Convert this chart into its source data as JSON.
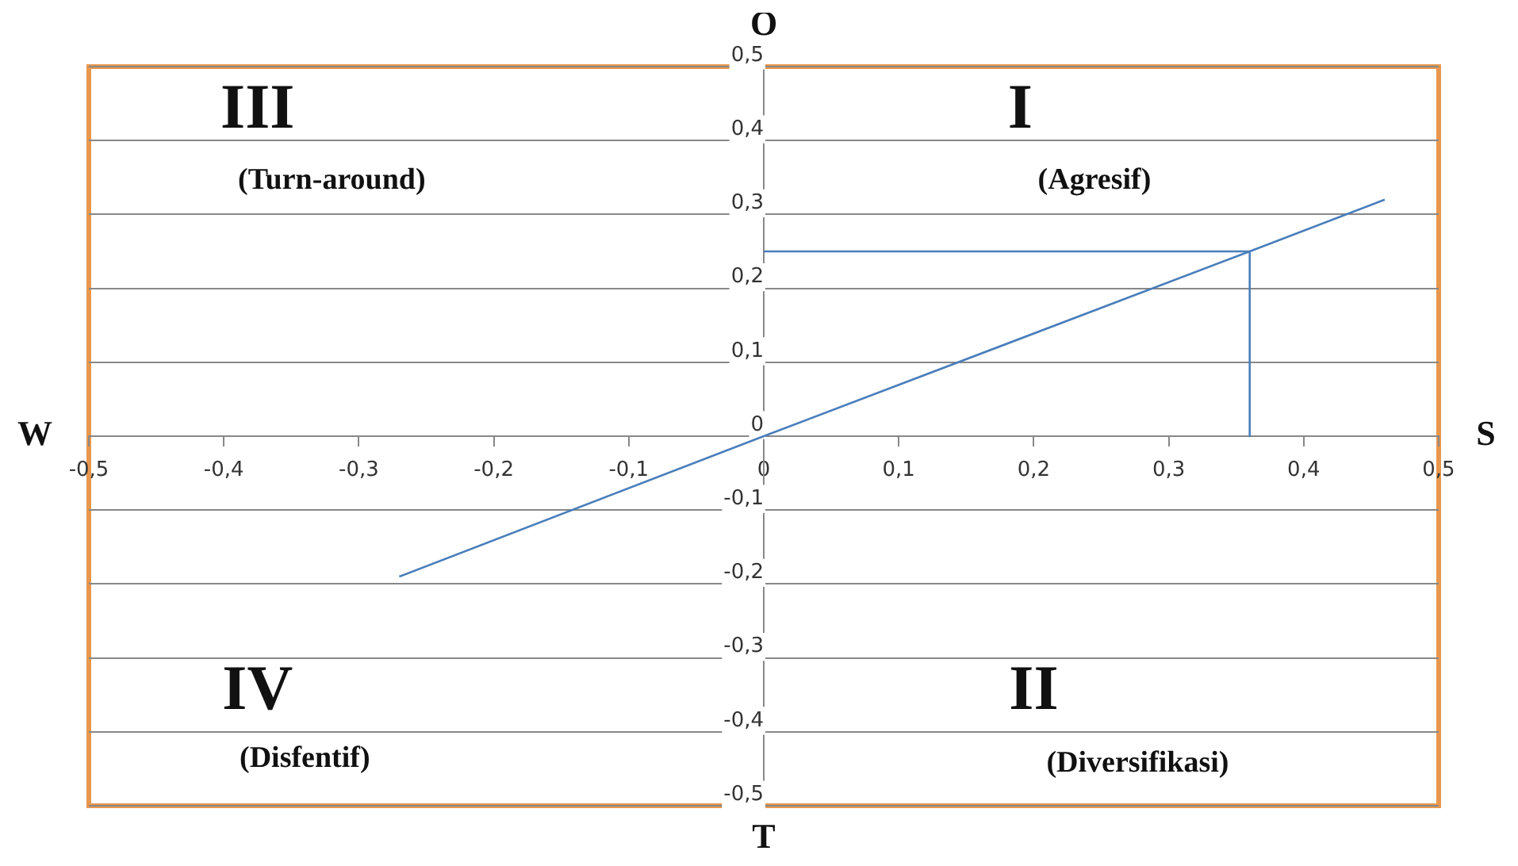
{
  "chart_data": {
    "type": "line",
    "series": [
      {
        "x": [
          -0.27,
          0,
          0.36,
          0.46
        ],
        "values": [
          -0.19,
          0,
          0.25,
          0.32
        ],
        "color": "#4a7ebb"
      },
      {
        "x": [
          0,
          0.36
        ],
        "values": [
          0.25,
          0.25
        ],
        "color": "#4a7ebb"
      },
      {
        "x": [
          0.36,
          0.36
        ],
        "values": [
          0.25,
          0
        ],
        "color": "#4a7ebb"
      }
    ],
    "xlim": [
      -0.5,
      0.5
    ],
    "ylim": [
      -0.5,
      0.5
    ],
    "xticks": [
      {
        "value": -0.5,
        "label": "-0,5"
      },
      {
        "value": -0.4,
        "label": "-0,4"
      },
      {
        "value": -0.3,
        "label": "-0,3"
      },
      {
        "value": -0.2,
        "label": "-0,2"
      },
      {
        "value": -0.1,
        "label": "-0,1"
      },
      0,
      {
        "value": 0.1,
        "label": "0,1"
      },
      {
        "value": 0.2,
        "label": "0,2"
      },
      {
        "value": 0.3,
        "label": "0,3"
      },
      {
        "value": 0.4,
        "label": "0,4"
      },
      {
        "value": 0.5,
        "label": "0,5"
      }
    ],
    "yticks": [
      {
        "value": -0.5,
        "label": "-0,5"
      },
      {
        "value": -0.4,
        "label": "-0,4"
      },
      {
        "value": -0.3,
        "label": "-0,3"
      },
      {
        "value": -0.2,
        "label": "-0,2"
      },
      {
        "value": -0.1,
        "label": "-0,1"
      },
      0,
      {
        "value": 0.1,
        "label": "0,1"
      },
      {
        "value": 0.2,
        "label": "0,2"
      },
      {
        "value": 0.3,
        "label": "0,3"
      },
      {
        "value": 0.4,
        "label": "0,4"
      },
      {
        "value": 0.5,
        "label": "0,5"
      }
    ],
    "grid": "y",
    "legend": false,
    "marker": "none",
    "line_style": "solid",
    "annotations": [
      "W",
      "S",
      "O",
      "T",
      "III",
      "(Turn-around)",
      "I",
      "(Agresif)",
      "IV",
      "(Disfentif)",
      "II",
      "(Diversifikasi)"
    ]
  }
}
